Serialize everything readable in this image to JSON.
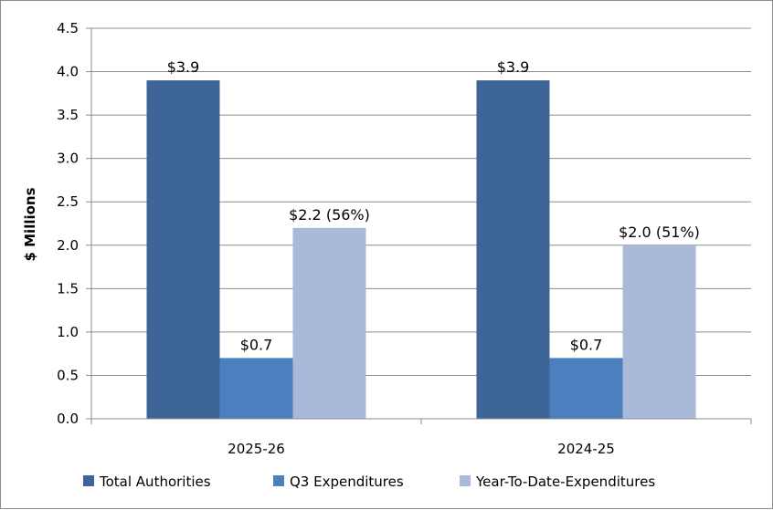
{
  "chart_data": {
    "type": "bar",
    "title": "",
    "xlabel": "",
    "ylabel": "$ Millions",
    "ylim": [
      0,
      4.5
    ],
    "ytick_step": 0.5,
    "yticks": [
      "0.0",
      "0.5",
      "1.0",
      "1.5",
      "2.0",
      "2.5",
      "3.0",
      "3.5",
      "4.0",
      "4.5"
    ],
    "grid": "horizontal",
    "legend_position": "bottom",
    "categories": [
      "2025-26",
      "2024-25"
    ],
    "series": [
      {
        "name": "Total Authorities",
        "color": "#3e6597",
        "values": [
          3.9,
          3.9
        ],
        "labels": [
          "$3.9",
          "$3.9"
        ]
      },
      {
        "name": "Q3 Expenditures",
        "color": "#4c7fbd",
        "values": [
          0.7,
          0.7
        ],
        "labels": [
          "$0.7",
          "$0.7"
        ]
      },
      {
        "name": "Year-To-Date-Expenditures",
        "color": "#a8b9d9",
        "values": [
          2.2,
          2.0
        ],
        "labels": [
          "$2.2 (56%)",
          "$2.0 (51%)"
        ]
      }
    ]
  }
}
